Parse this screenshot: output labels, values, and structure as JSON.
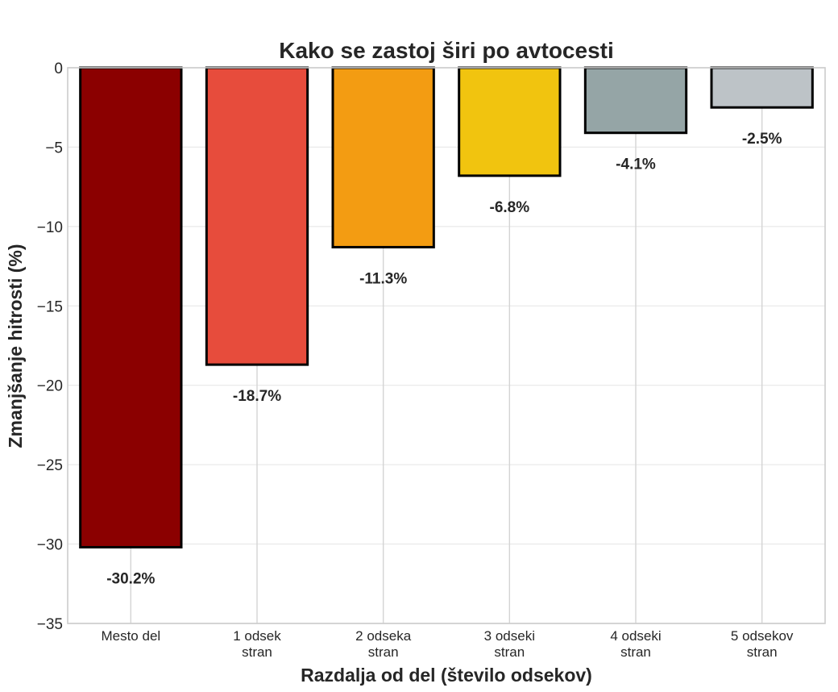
{
  "chart_data": {
    "type": "bar",
    "title": "Kako se zastoj širi po avtocesti",
    "xlabel": "Razdalja od del (število odsekov)",
    "ylabel": "Zmanjšanje hitrosti (%)",
    "ylim": [
      -35,
      0
    ],
    "yticks": [
      0,
      -5,
      -10,
      -15,
      -20,
      -25,
      -30,
      -35
    ],
    "ytick_labels": [
      "0",
      "−5",
      "−10",
      "−15",
      "−20",
      "−25",
      "−30",
      "−35"
    ],
    "grid": true,
    "categories": [
      [
        "Mesto del"
      ],
      [
        "1 odsek",
        "stran"
      ],
      [
        "2 odseka",
        "stran"
      ],
      [
        "3 odseki",
        "stran"
      ],
      [
        "4 odseki",
        "stran"
      ],
      [
        "5 odsekov",
        "stran"
      ]
    ],
    "values": [
      -30.2,
      -18.7,
      -11.3,
      -6.8,
      -4.1,
      -2.5
    ],
    "data_labels": [
      "-30.2%",
      "-18.7%",
      "-11.3%",
      "-6.8%",
      "-4.1%",
      "-2.5%"
    ],
    "colors": [
      "#8b0000",
      "#e74c3c",
      "#f39c12",
      "#f1c40f",
      "#95a5a6",
      "#bdc3c7"
    ]
  }
}
